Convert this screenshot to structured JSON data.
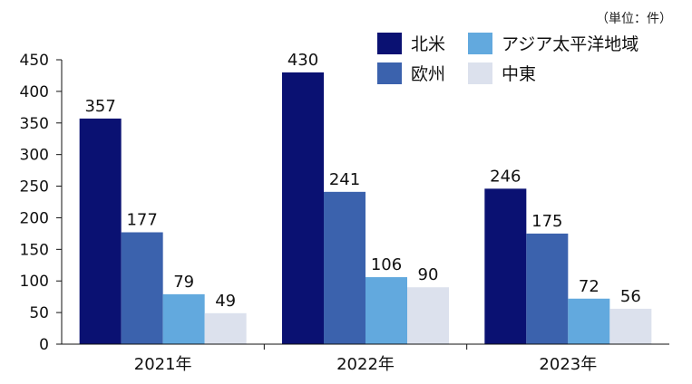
{
  "unit_note": "（単位：件）",
  "chart_data": {
    "type": "bar",
    "categories": [
      "2021年",
      "2022年",
      "2023年"
    ],
    "series": [
      {
        "name": "北米",
        "color": "#0a1172",
        "values": [
          357,
          430,
          246
        ]
      },
      {
        "name": "欧州",
        "color": "#3b62ad",
        "values": [
          177,
          241,
          175
        ]
      },
      {
        "name": "アジア太平洋地域",
        "color": "#62a9de",
        "values": [
          79,
          106,
          72
        ]
      },
      {
        "name": "中東",
        "color": "#dce1ed",
        "values": [
          49,
          90,
          56
        ]
      }
    ],
    "yticks": [
      "0",
      "50",
      "100",
      "150",
      "200",
      "250",
      "300",
      "350",
      "400",
      "450"
    ],
    "ylim": [
      0,
      450
    ],
    "grid": false,
    "legend_position": "top-right"
  }
}
